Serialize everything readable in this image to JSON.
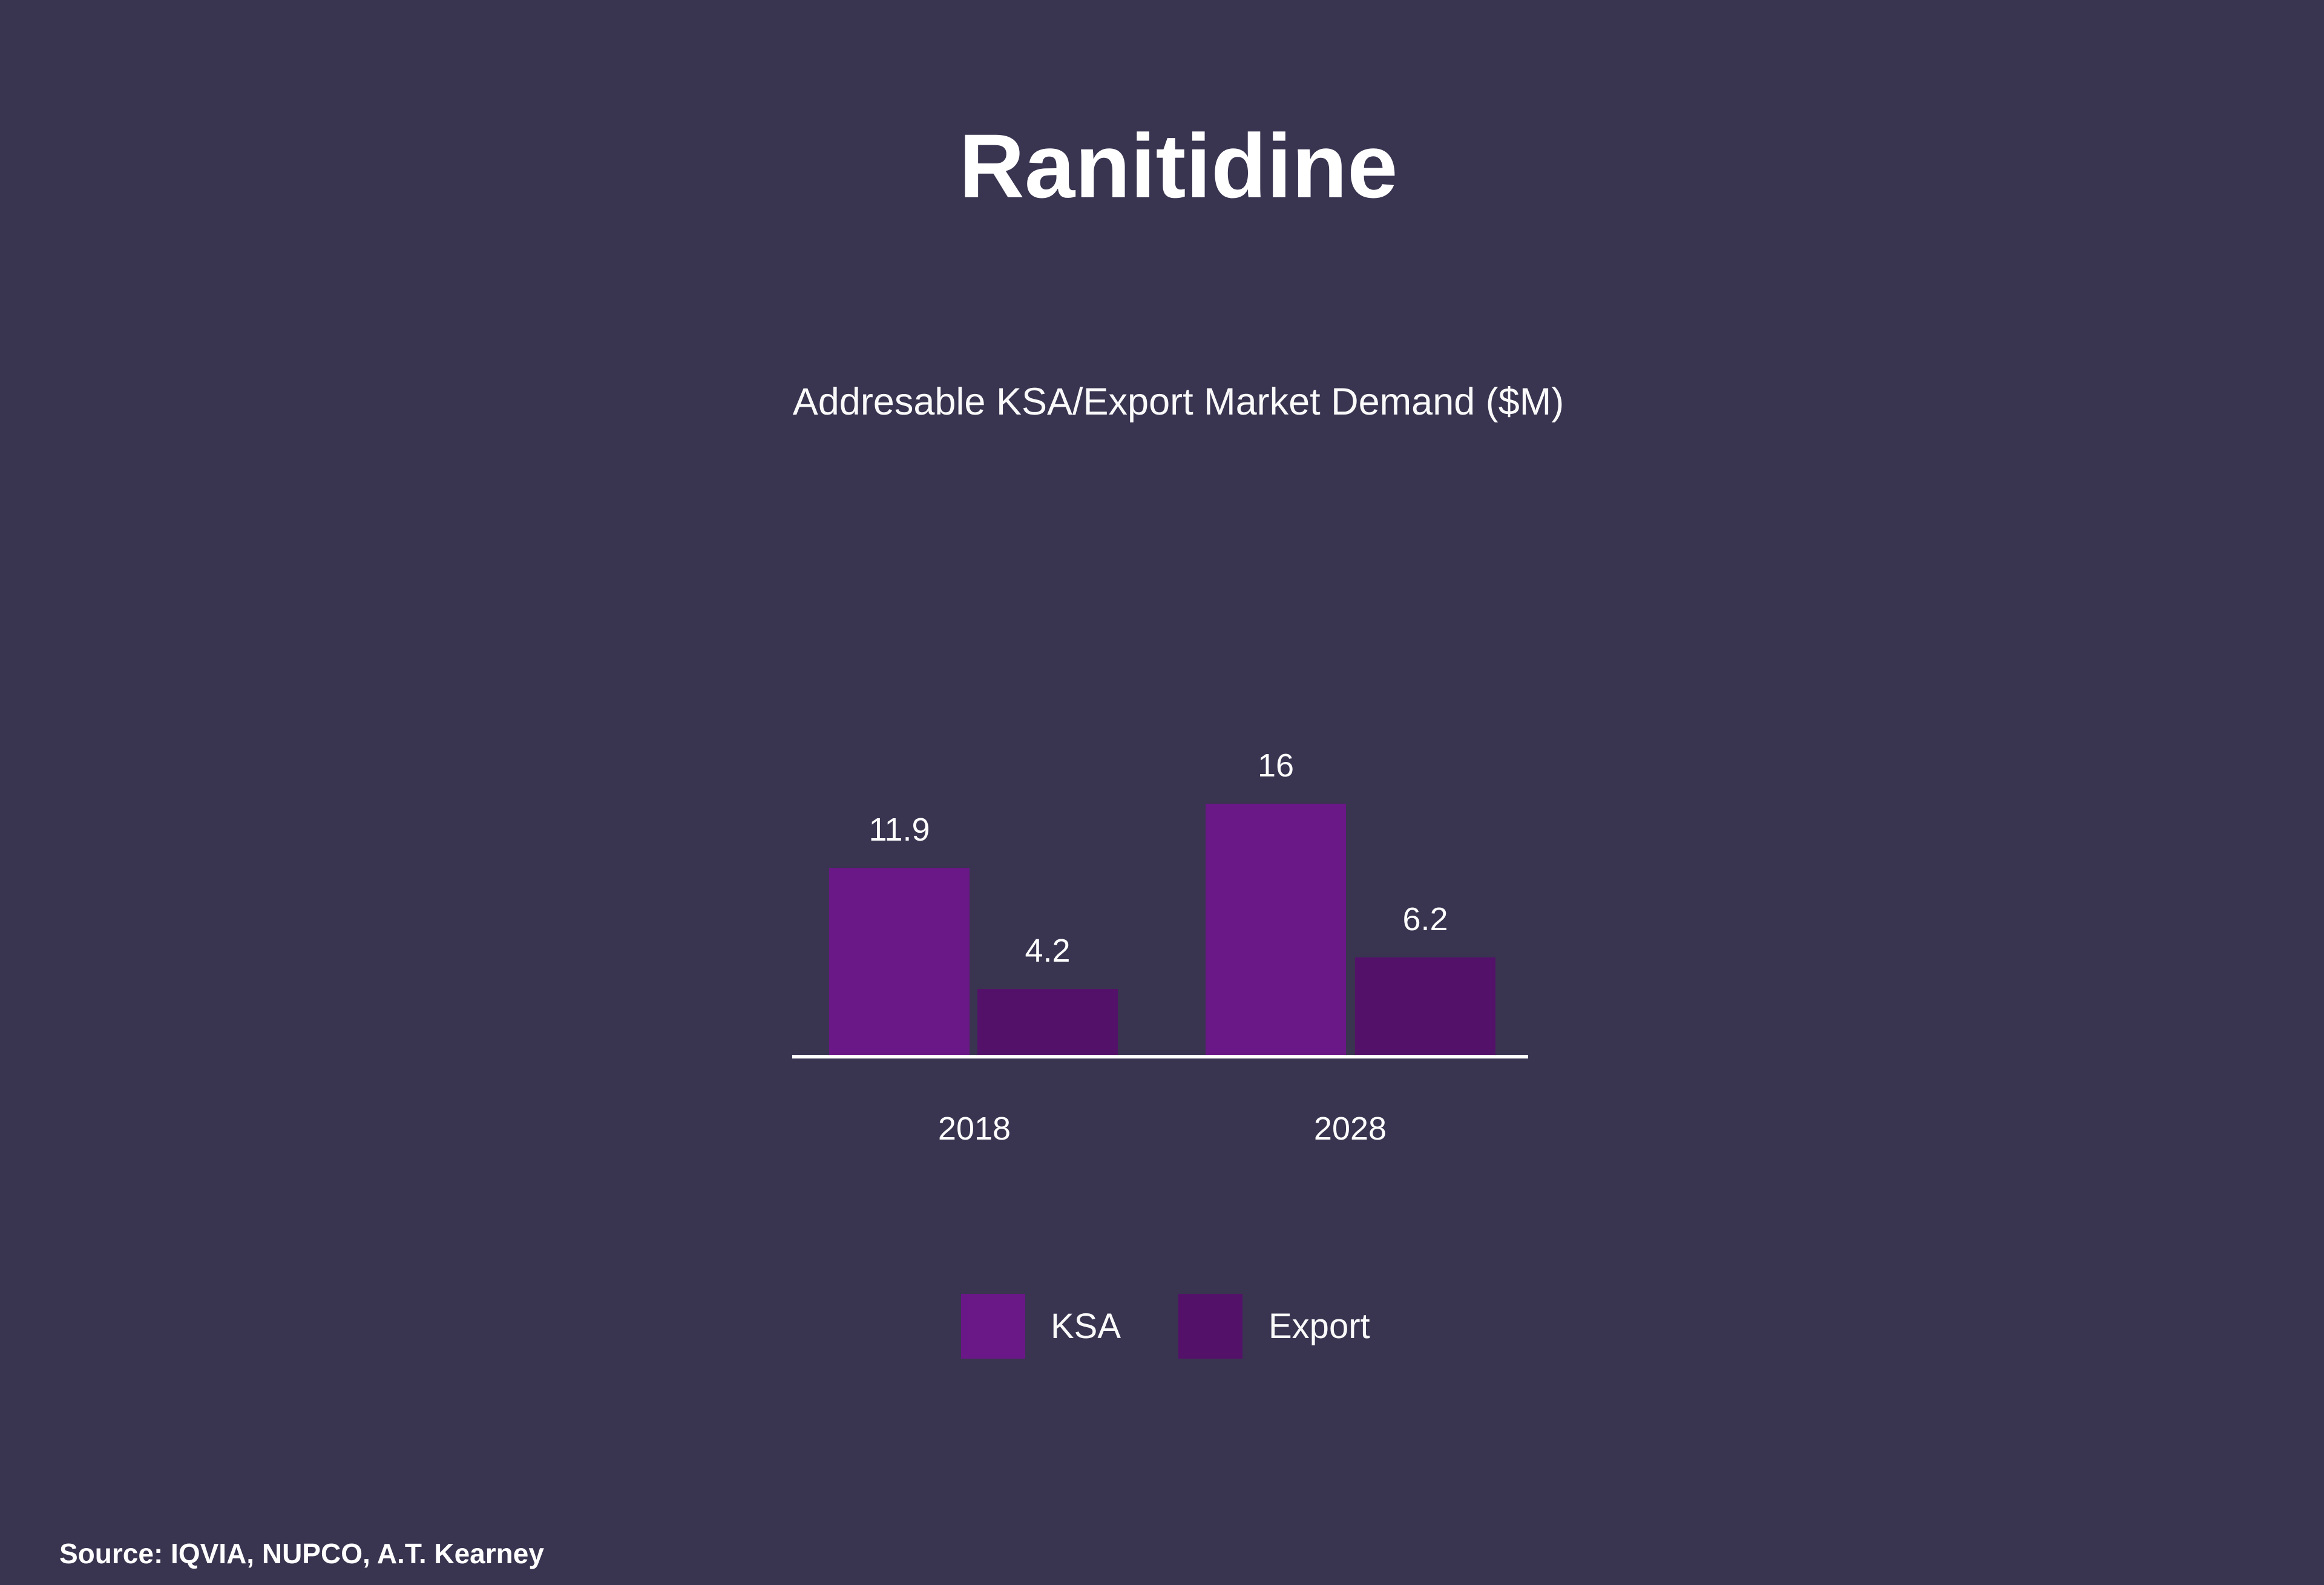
{
  "slide": {
    "title": "Ranitidine",
    "source": "Source: IQVIA, NUPCO, A.T. Kearney"
  },
  "chart_data": {
    "type": "bar",
    "title": "Addresable KSA/Export Market Demand ($M)",
    "categories": [
      "2018",
      "2028"
    ],
    "series": [
      {
        "name": "KSA",
        "color": "#6A1787",
        "values": [
          11.9,
          16
        ]
      },
      {
        "name": "Export",
        "color": "#541169",
        "values": [
          4.2,
          6.2
        ]
      }
    ],
    "ylim": [
      0,
      16
    ],
    "grid": false,
    "axis": "x-axis baseline only, white",
    "legend_position": "bottom",
    "value_labels_shown": true,
    "colors": {
      "background": "#393450",
      "text": "#FFFFFF",
      "axis_line": "#FFFFFF",
      "ksa_bar": "#6A1787",
      "export_bar": "#541169"
    }
  }
}
